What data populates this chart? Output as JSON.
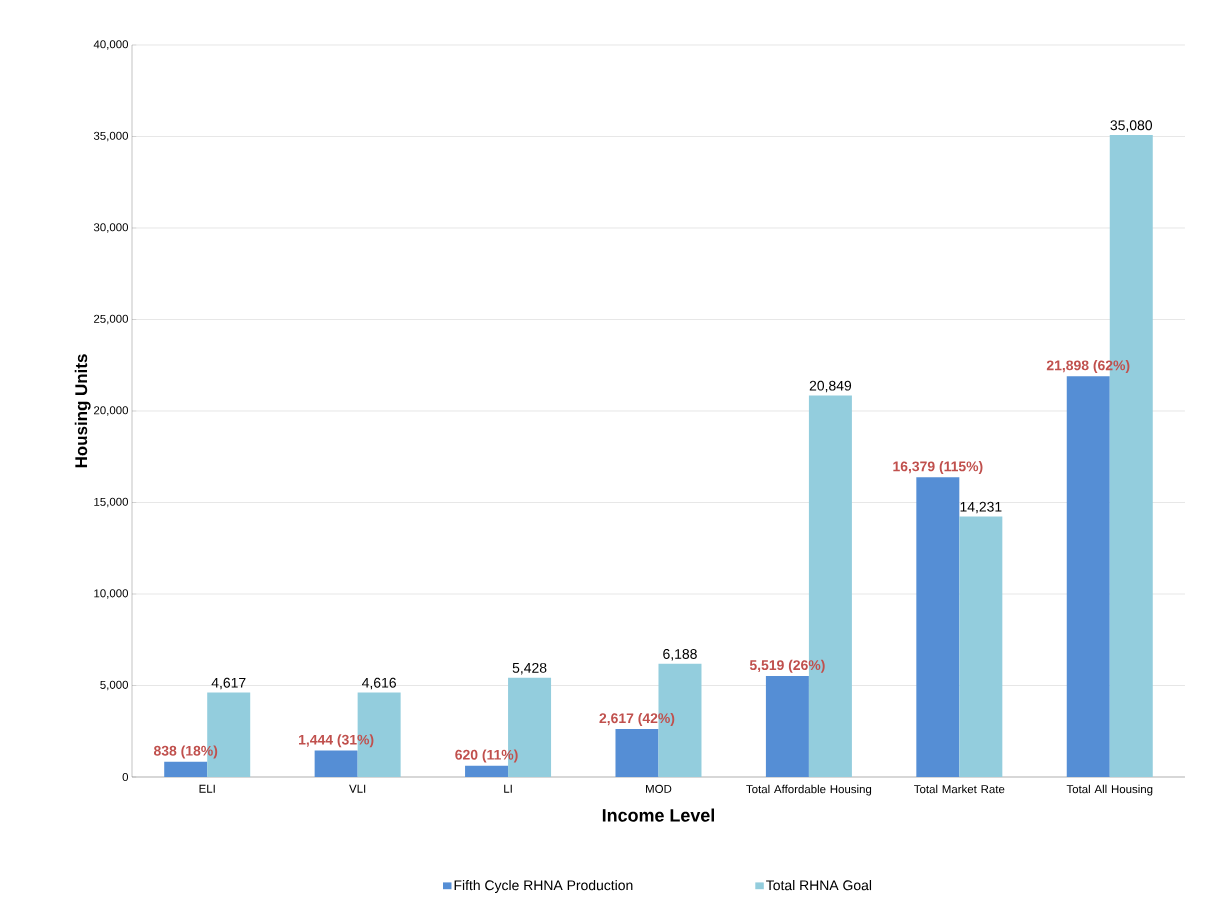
{
  "chart_data": {
    "type": "bar",
    "xlabel": "Income Level",
    "ylabel": "Housing Units",
    "categories": [
      "ELI",
      "VLI",
      "LI",
      "MOD",
      "Total Affordable Housing",
      "Total Market Rate",
      "Total All Housing"
    ],
    "series": [
      {
        "name": "Fifth Cycle RHNA Production",
        "color": "#558ed5",
        "values": [
          838,
          1444,
          620,
          2617,
          5519,
          16379,
          21898
        ],
        "value_labels": [
          "838 (18%)",
          "1,444 (31%)",
          "620 (11%)",
          "2,617 (42%)",
          "5,519 (26%)",
          "16,379 (115%)",
          "21,898 (62%)"
        ]
      },
      {
        "name": "Total RHNA Goal",
        "color": "#93cddd",
        "values": [
          4617,
          4616,
          5428,
          6188,
          20849,
          14231,
          35080
        ],
        "value_labels": [
          "4,617",
          "4,616",
          "5,428",
          "6,188",
          "20,849",
          "14,231",
          "35,080"
        ]
      }
    ],
    "ylim": [
      0,
      40000
    ],
    "yticks": [
      {
        "value": 0,
        "label": "0"
      },
      {
        "value": 5000,
        "label": "5,000"
      },
      {
        "value": 10000,
        "label": "10,000"
      },
      {
        "value": 15000,
        "label": "15,000"
      },
      {
        "value": 20000,
        "label": "20,000"
      },
      {
        "value": 25000,
        "label": "25,000"
      },
      {
        "value": 30000,
        "label": "30,000"
      },
      {
        "value": 35000,
        "label": "35,000"
      },
      {
        "value": 40000,
        "label": "40,000"
      }
    ],
    "grid": "y",
    "legend": "bottom"
  }
}
